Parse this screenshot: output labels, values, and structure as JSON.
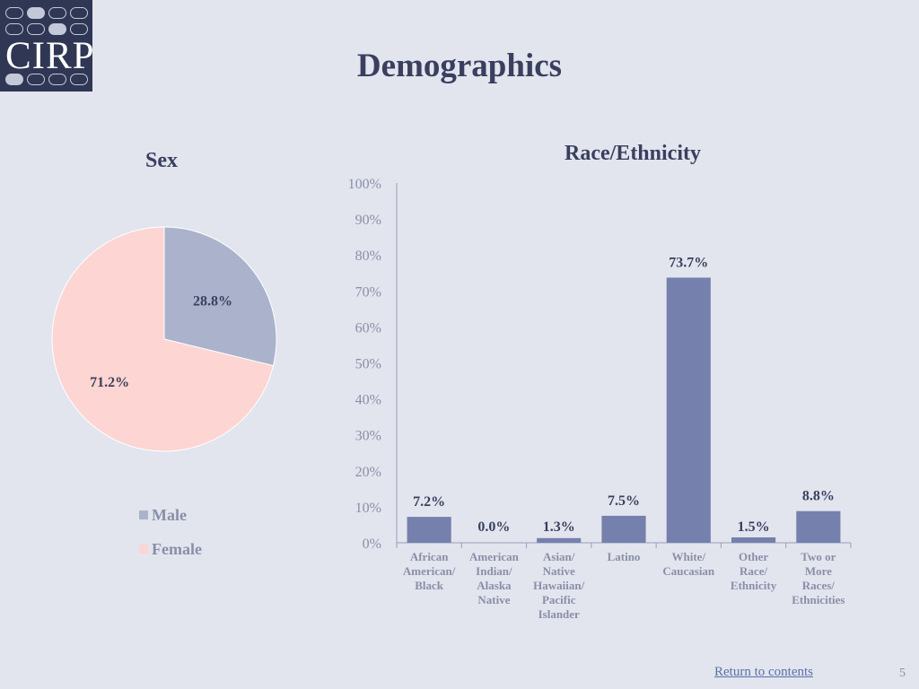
{
  "logo": {
    "text": "CIRP"
  },
  "page_title": "Demographics",
  "colors": {
    "male": "#abb2cc",
    "female": "#fdd5d2",
    "bar": "#7580ad"
  },
  "chart_data": [
    {
      "type": "pie",
      "title": "Sex",
      "slices": [
        {
          "label": "Male",
          "value": 28.8,
          "value_label": "28.8%"
        },
        {
          "label": "Female",
          "value": 71.2,
          "value_label": "71.2%"
        }
      ],
      "legend": "bottom"
    },
    {
      "type": "bar",
      "title": "Race/Ethnicity",
      "categories": [
        [
          "African",
          "American/",
          "Black"
        ],
        [
          "American",
          "Indian/",
          "Alaska",
          "Native"
        ],
        [
          "Asian/",
          "Native",
          "Hawaiian/",
          "Pacific",
          "Islander"
        ],
        [
          "Latino"
        ],
        [
          "White/",
          "Caucasian"
        ],
        [
          "Other",
          "Race/",
          "Ethnicity"
        ],
        [
          "Two or",
          "More",
          "Races/",
          "Ethnicities"
        ]
      ],
      "values": [
        7.2,
        0.0,
        1.3,
        7.5,
        73.7,
        1.5,
        8.8
      ],
      "value_labels": [
        "7.2%",
        "0.0%",
        "1.3%",
        "7.5%",
        "73.7%",
        "1.5%",
        "8.8%"
      ],
      "ylim": [
        0,
        100
      ],
      "yticks": [
        "0%",
        "10%",
        "20%",
        "30%",
        "40%",
        "50%",
        "60%",
        "70%",
        "80%",
        "90%",
        "100%"
      ],
      "grid": false
    }
  ],
  "footer": {
    "link": "Return to contents",
    "page_number": "5"
  }
}
